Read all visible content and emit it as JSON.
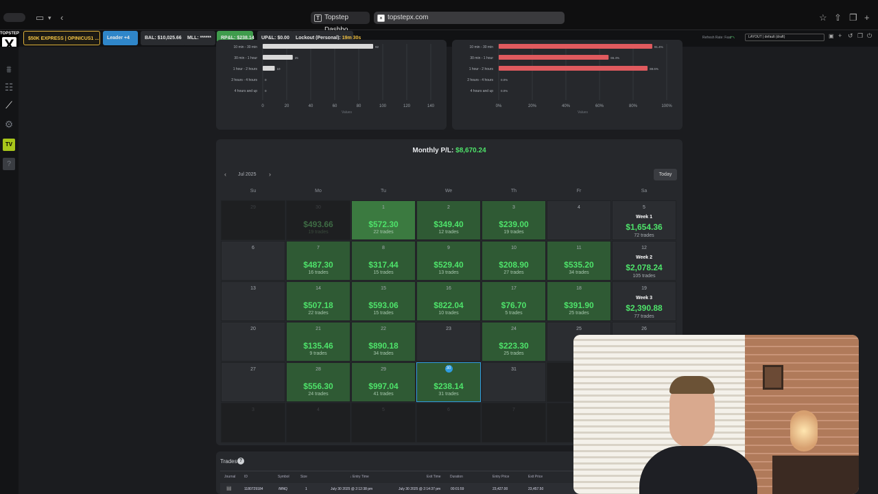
{
  "browser": {
    "tabs": [
      {
        "label": "Topstep Dashbo..."
      },
      {
        "label": "topstepx.com"
      }
    ]
  },
  "toolbar": {
    "account": "$50K EXPRESS | OPINICUS1 ...",
    "leader": "Leader +4",
    "bal": "BAL: $10,025.66",
    "mll": "MLL: ******",
    "rpl": "RP&L: $238.14",
    "upl": "UP&L: $0.00",
    "lockout_label": "Lockout (Personal):",
    "lockout_time": "19m 30s",
    "refresh": "Refresh Rate: Fast",
    "layout": "LAYOUT | default (draft)"
  },
  "chart_data": [
    {
      "type": "bar",
      "orientation": "horizontal",
      "categories": [
        "10 min - 30 min",
        "30 min - 1 hour",
        "1 hour - 2 hours",
        "2 hours - 4 hours",
        "4 hours and up"
      ],
      "values": [
        92,
        25,
        10,
        0,
        0
      ],
      "value_labels": [
        "92",
        "25",
        "10",
        "0",
        "0"
      ],
      "xlabel": "Values",
      "xticks": [
        "0",
        "20",
        "40",
        "60",
        "80",
        "100",
        "120",
        "140"
      ],
      "xlim": [
        0,
        140
      ],
      "colors": [
        "#d9d9d9"
      ]
    },
    {
      "type": "bar",
      "orientation": "horizontal",
      "categories": [
        "10 min - 30 min",
        "30 min - 1 hour",
        "1 hour - 2 hours",
        "2 hours - 4 hours",
        "4 hours and up"
      ],
      "values": [
        91.4,
        65.4,
        88.6,
        0,
        0
      ],
      "value_labels": [
        "91.4%",
        "65.4%",
        "88.6%",
        "0.0%",
        "0.0%"
      ],
      "xlabel": "Values",
      "xticks": [
        "0%",
        "20%",
        "40%",
        "60%",
        "80%",
        "100%"
      ],
      "xlim": [
        0,
        100
      ],
      "colors": [
        "#e05a5e"
      ]
    }
  ],
  "calendar": {
    "title_label": "Monthly P/L:",
    "title_value": "$8,670.24",
    "month": "Jul 2025",
    "today_btn": "Today",
    "weekdays": [
      "Su",
      "Mo",
      "Tu",
      "We",
      "Th",
      "Fr",
      "Sa"
    ],
    "weeks": [
      {
        "days": [
          {
            "d": "29",
            "p": "",
            "t": "",
            "s": "out"
          },
          {
            "d": "30",
            "p": "$493.66",
            "t": "19 trades",
            "s": "out"
          },
          {
            "d": "1",
            "p": "$572.30",
            "t": "22 trades",
            "s": "win"
          },
          {
            "d": "2",
            "p": "$349.40",
            "t": "12 trades",
            "s": "win"
          },
          {
            "d": "3",
            "p": "$239.00",
            "t": "19 trades",
            "s": "win"
          },
          {
            "d": "4",
            "p": "",
            "t": "",
            "s": "empty"
          }
        ],
        "week": {
          "d": "5",
          "label": "Week 1",
          "pnl": "$1,654.36",
          "trades": "72 trades"
        }
      },
      {
        "days": [
          {
            "d": "6",
            "p": "",
            "t": "",
            "s": "empty"
          },
          {
            "d": "7",
            "p": "$487.30",
            "t": "16 trades",
            "s": "win"
          },
          {
            "d": "8",
            "p": "$317.44",
            "t": "15 trades",
            "s": "win"
          },
          {
            "d": "9",
            "p": "$529.40",
            "t": "13 trades",
            "s": "win"
          },
          {
            "d": "10",
            "p": "$208.90",
            "t": "27 trades",
            "s": "win"
          },
          {
            "d": "11",
            "p": "$535.20",
            "t": "34 trades",
            "s": "win"
          }
        ],
        "week": {
          "d": "12",
          "label": "Week 2",
          "pnl": "$2,078.24",
          "trades": "105 trades"
        }
      },
      {
        "days": [
          {
            "d": "13",
            "p": "",
            "t": "",
            "s": "empty"
          },
          {
            "d": "14",
            "p": "$507.18",
            "t": "22 trades",
            "s": "win"
          },
          {
            "d": "15",
            "p": "$593.06",
            "t": "15 trades",
            "s": "win"
          },
          {
            "d": "16",
            "p": "$822.04",
            "t": "10 trades",
            "s": "win"
          },
          {
            "d": "17",
            "p": "$76.70",
            "t": "5 trades",
            "s": "win"
          },
          {
            "d": "18",
            "p": "$391.90",
            "t": "25 trades",
            "s": "win"
          }
        ],
        "week": {
          "d": "19",
          "label": "Week 3",
          "pnl": "$2,390.88",
          "trades": "77 trades"
        }
      },
      {
        "days": [
          {
            "d": "20",
            "p": "",
            "t": "",
            "s": "empty"
          },
          {
            "d": "21",
            "p": "$135.46",
            "t": "9 trades",
            "s": "win"
          },
          {
            "d": "22",
            "p": "$890.18",
            "t": "34 trades",
            "s": "win"
          },
          {
            "d": "23",
            "p": "",
            "t": "",
            "s": "empty"
          },
          {
            "d": "24",
            "p": "$223.30",
            "t": "25 trades",
            "s": "win"
          },
          {
            "d": "25",
            "p": "",
            "t": "",
            "s": "empty"
          }
        ],
        "week": {
          "d": "26",
          "label": "",
          "pnl": "",
          "trades": ""
        }
      },
      {
        "days": [
          {
            "d": "27",
            "p": "",
            "t": "",
            "s": "empty"
          },
          {
            "d": "28",
            "p": "$556.30",
            "t": "24 trades",
            "s": "win"
          },
          {
            "d": "29",
            "p": "$997.04",
            "t": "41 trades",
            "s": "win"
          },
          {
            "d": "30",
            "p": "$238.14",
            "t": "31 trades",
            "s": "today"
          },
          {
            "d": "31",
            "p": "",
            "t": "",
            "s": "empty"
          },
          {
            "d": "",
            "p": "",
            "t": "",
            "s": "out"
          }
        ],
        "week": {
          "d": "",
          "label": "",
          "pnl": "",
          "trades": ""
        }
      },
      {
        "days": [
          {
            "d": "3",
            "p": "",
            "t": "",
            "s": "out"
          },
          {
            "d": "4",
            "p": "",
            "t": "",
            "s": "out"
          },
          {
            "d": "5",
            "p": "",
            "t": "",
            "s": "out"
          },
          {
            "d": "6",
            "p": "",
            "t": "",
            "s": "out"
          },
          {
            "d": "7",
            "p": "",
            "t": "",
            "s": "out"
          },
          {
            "d": "",
            "p": "",
            "t": "",
            "s": "out"
          }
        ],
        "week": {
          "d": "",
          "label": "",
          "pnl": "",
          "trades": ""
        }
      }
    ]
  },
  "trades": {
    "title": "Trades",
    "columns": [
      "Journal",
      "ID",
      "Symbol",
      "Size",
      "Entry Time",
      "Exit Time",
      "Duration",
      "Entry Price",
      "Exit Price"
    ],
    "rows": [
      {
        "id": "1180729184",
        "symbol": "/MNQ",
        "size": "1",
        "entry_time": "July 30 2025 @ 2:12:38 pm",
        "exit_time": "July 30 2025 @ 2:14:37 pm",
        "duration": "00:01:59",
        "entry_price": "23,427.00",
        "exit_price": "23,457.50"
      }
    ]
  },
  "colors": {
    "win": "#2f5a34",
    "win_bright": "#3b7a40",
    "profit_text": "#4ee36a",
    "loss_bar": "#e05a5e",
    "accent": "#2f9be0"
  }
}
